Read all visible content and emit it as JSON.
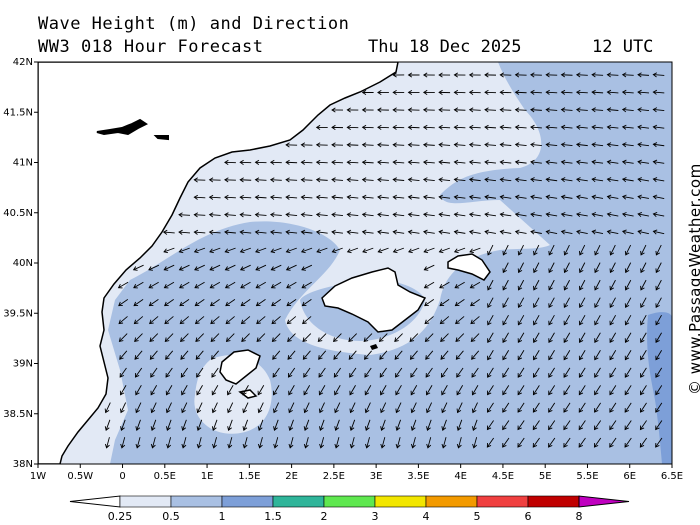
{
  "header": {
    "title": "Wave Height (m) and Direction",
    "subtitle": "WW3 018 Hour Forecast",
    "date": "Thu 18 Dec 2025",
    "time": "12 UTC"
  },
  "credit": "© www.PassageWeather.com",
  "axes": {
    "x_labels": [
      "1W",
      "0.5W",
      "0",
      "0.5E",
      "1E",
      "1.5E",
      "2E",
      "2.5E",
      "3E",
      "3.5E",
      "4E",
      "4.5E",
      "5E",
      "5.5E",
      "6E",
      "6.5E"
    ],
    "y_labels": [
      "42N",
      "41.5N",
      "41N",
      "40.5N",
      "40N",
      "39.5N",
      "39N",
      "38.5N",
      "38N"
    ]
  },
  "legend": {
    "labels": [
      "0.25",
      "0.5",
      "1",
      "1.5",
      "2",
      "3",
      "4",
      "5",
      "6",
      "8"
    ],
    "colors": [
      "#e2e9f5",
      "#a9c0e3",
      "#7d9fd8",
      "#2fb59a",
      "#5fe84f",
      "#f2e600",
      "#f39a00",
      "#f04040",
      "#c00000",
      "#c000c0"
    ]
  },
  "colors": {
    "land": "#ffffff",
    "band_low": "#e2e9f5",
    "band_mid": "#a9c0e3",
    "band_high": "#7d9fd8",
    "arrow": "#000000"
  }
}
